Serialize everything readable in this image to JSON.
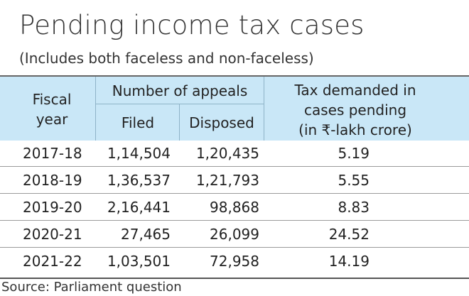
{
  "chart_data": {
    "type": "table",
    "title": "Pending income tax cases",
    "subtitle": "(Includes both faceless and non-faceless)",
    "columns": {
      "fiscal_year": "Fiscal year",
      "appeals_group": "Number of appeals",
      "filed": "Filed",
      "disposed": "Disposed",
      "tax": "Tax demanded in cases pending (in ₹-lakh crore)"
    },
    "header_lines": {
      "fiscal_1": "Fiscal",
      "fiscal_2": "year",
      "tax_1": "Tax demanded in",
      "tax_2": "cases pending",
      "tax_3": "(in ₹-lakh crore)"
    },
    "rows": [
      {
        "year": "2017-18",
        "filed": "1,14,504",
        "disposed": "1,20,435",
        "tax": "5.19"
      },
      {
        "year": "2018-19",
        "filed": "1,36,537",
        "disposed": "1,21,793",
        "tax": "5.55"
      },
      {
        "year": "2019-20",
        "filed": "2,16,441",
        "disposed": "98,868",
        "tax": "8.83"
      },
      {
        "year": "2020-21",
        "filed": "27,465",
        "disposed": "26,099",
        "tax": "24.52"
      },
      {
        "year": "2021-22",
        "filed": "1,03,501",
        "disposed": "72,958",
        "tax": "14.19"
      }
    ],
    "source": "Source: Parliament question",
    "header_color": "#c9e7f7"
  }
}
